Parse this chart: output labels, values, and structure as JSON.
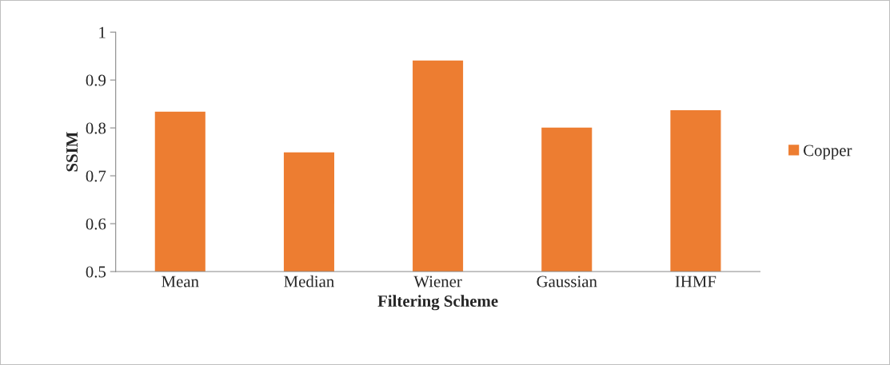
{
  "chart_data": {
    "type": "bar",
    "xlabel": "Filtering Scheme",
    "ylabel": "SSIM",
    "categories": [
      "Mean",
      "Median",
      "Wiener",
      "Gaussian",
      "IHMF"
    ],
    "series": [
      {
        "name": "Copper",
        "color": "#ed7d31",
        "values": [
          0.835,
          0.75,
          0.942,
          0.802,
          0.838
        ]
      }
    ],
    "ylim": [
      0.5,
      1
    ],
    "yticks": [
      0.5,
      0.6,
      0.7,
      0.8,
      0.9,
      1
    ],
    "grid": false,
    "legend": "right"
  }
}
